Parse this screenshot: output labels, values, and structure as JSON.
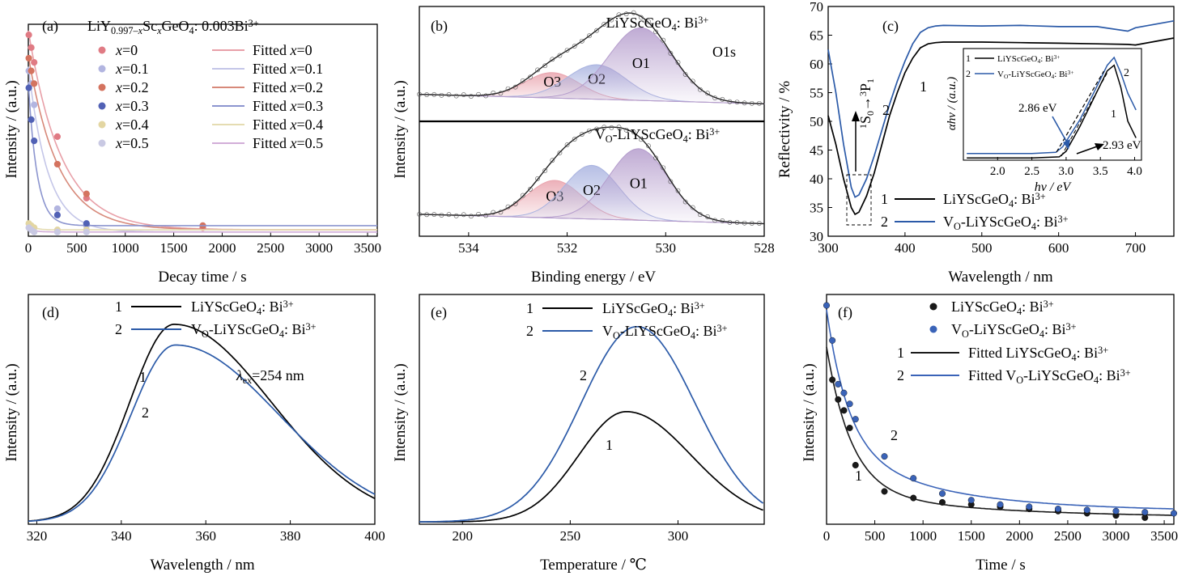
{
  "chart_data": [
    {
      "panel": "(a)",
      "type": "scatter",
      "title": "LiY0.997–xScxGeO4: 0.003Bi3+",
      "title_parts": {
        "base": "LiY",
        "sub1": "0.997–",
        "sub1_italic": "x",
        "mid": "Sc",
        "sub2_italic": "x",
        "rest": "GeO",
        "sub3": "4",
        "tail": ": 0.003Bi",
        "sup": "3+"
      },
      "xlabel": "Decay time / s",
      "ylabel": "Intensity / (a.u.)",
      "xlim": [
        0,
        3600
      ],
      "ylim": [
        0,
        1
      ],
      "xticks": [
        "0",
        "500",
        "1000",
        "1500",
        "2000",
        "2500",
        "3000",
        "3500"
      ],
      "legend_position": "top-right",
      "series": [
        {
          "name": "x=0",
          "fit": "Fitted x=0",
          "color": "#e07b84",
          "fit_color": "#e8a0a8",
          "tau": 340,
          "y0": 0.97,
          "base": 0.03,
          "x": [
            5,
            30,
            60,
            300,
            600,
            1800
          ],
          "y": [
            0.95,
            0.89,
            0.82,
            0.47,
            0.18,
            0.04
          ]
        },
        {
          "name": "x=0.1",
          "fit": "Fitted x=0.1",
          "color": "#b2b5e0",
          "fit_color": "#c4c6e8",
          "tau": 200,
          "y0": 0.8,
          "base": 0.02,
          "x": [
            5,
            30,
            60,
            300,
            600
          ],
          "y": [
            0.78,
            0.72,
            0.62,
            0.13,
            0.05
          ]
        },
        {
          "name": "x=0.2",
          "fit": "Fitted x=0.2",
          "color": "#d4735f",
          "fit_color": "#d7897a",
          "tau": 310,
          "y0": 0.85,
          "base": 0.03,
          "x": [
            5,
            30,
            60,
            300,
            600,
            1800
          ],
          "y": [
            0.84,
            0.78,
            0.72,
            0.34,
            0.2,
            0.05
          ]
        },
        {
          "name": "x=0.3",
          "fit": "Fitted x=0.3",
          "color": "#5161b5",
          "fit_color": "#8c95cf",
          "tau": 90,
          "y0": 0.72,
          "base": 0.05,
          "x": [
            5,
            30,
            60,
            300,
            600
          ],
          "y": [
            0.7,
            0.55,
            0.45,
            0.1,
            0.06
          ]
        },
        {
          "name": "x=0.4",
          "fit": "Fitted x=0.4",
          "color": "#e3d6a2",
          "fit_color": "#e5dcb2",
          "tau": 60,
          "y0": 0.06,
          "base": 0.03,
          "x": [
            5,
            30,
            60,
            300,
            600
          ],
          "y": [
            0.06,
            0.05,
            0.04,
            0.03,
            0.03
          ]
        },
        {
          "name": "x=0.5",
          "fit": "Fitted x=0.5",
          "color": "#c9c9e3",
          "fit_color": "#d2aed8",
          "tau": 60,
          "y0": 0.04,
          "base": 0.02,
          "x": [
            5,
            30,
            60,
            300,
            600
          ],
          "y": [
            0.04,
            0.03,
            0.02,
            0.02,
            0.02
          ]
        }
      ]
    },
    {
      "panel": "(b)",
      "type": "area",
      "xlabel": "Binding energy / eV",
      "ylabel": "Intensity / (a.u.)",
      "xlim": [
        535,
        528
      ],
      "xticks": [
        "534",
        "532",
        "530",
        "528"
      ],
      "annotation": "O1s",
      "subplots": [
        {
          "label": "LiYScGeO4: Bi3+",
          "label_base": "LiYScGeO",
          "label_sub": "4",
          "label_tail": ": Bi",
          "label_sup": "3+",
          "peaks": [
            {
              "name": "O3",
              "center": 532.3,
              "height": 0.28,
              "sigma": 0.55,
              "color": "#e9a3ad"
            },
            {
              "name": "O2",
              "center": 531.4,
              "height": 0.38,
              "sigma": 0.6,
              "color": "#a9b3e0"
            },
            {
              "name": "O1",
              "center": 530.5,
              "height": 0.8,
              "sigma": 0.65,
              "color": "#b49ccc"
            }
          ]
        },
        {
          "label": "VO-LiYScGeO4: Bi3+",
          "label_base": "V",
          "label_vsub": "O",
          "label_mid": "-LiYScGeO",
          "label_sub": "4",
          "label_tail": ": Bi",
          "label_sup": "3+",
          "peaks": [
            {
              "name": "O3",
              "center": 532.25,
              "height": 0.42,
              "sigma": 0.55,
              "color": "#e9a3ad"
            },
            {
              "name": "O2",
              "center": 531.5,
              "height": 0.6,
              "sigma": 0.55,
              "color": "#a9b3e0"
            },
            {
              "name": "O1",
              "center": 530.55,
              "height": 0.8,
              "sigma": 0.6,
              "color": "#b49ccc"
            }
          ]
        }
      ]
    },
    {
      "panel": "(c)",
      "type": "line",
      "xlabel": "Wavelength / nm",
      "ylabel": "Reflectivity / %",
      "xlim": [
        300,
        750
      ],
      "ylim": [
        30,
        70
      ],
      "xticks": [
        "300",
        "400",
        "500",
        "600",
        "700"
      ],
      "yticks": [
        "30",
        "35",
        "40",
        "45",
        "50",
        "55",
        "60",
        "65",
        "70"
      ],
      "annotation": "1S0→3P1",
      "series": [
        {
          "name": "LiYScGeO4: Bi3+",
          "num": "1",
          "color": "#000000",
          "x": [
            300,
            310,
            320,
            330,
            335,
            340,
            350,
            360,
            370,
            380,
            390,
            400,
            410,
            420,
            430,
            440,
            450,
            500,
            550,
            600,
            650,
            690,
            700,
            750
          ],
          "y": [
            51,
            46,
            40,
            35,
            33.8,
            34.2,
            37,
            41,
            46,
            51,
            55,
            58.5,
            61,
            62.8,
            63.5,
            63.7,
            63.8,
            63.8,
            63.7,
            63.6,
            63.5,
            63.4,
            63.3,
            64.5
          ]
        },
        {
          "name": "VO-LiYScGeO4: Bi3+",
          "num": "2",
          "color": "#2b5aa8",
          "x": [
            300,
            310,
            320,
            330,
            335,
            340,
            350,
            360,
            370,
            380,
            390,
            400,
            410,
            420,
            430,
            440,
            450,
            500,
            550,
            600,
            650,
            690,
            700,
            750
          ],
          "y": [
            62.5,
            55,
            46,
            38.5,
            36.8,
            37.2,
            40,
            44,
            48.5,
            53,
            57,
            60.5,
            63.5,
            65.5,
            66.3,
            66.6,
            66.7,
            66.6,
            66.7,
            66.5,
            66.5,
            65.7,
            66.3,
            67.5
          ]
        }
      ],
      "inset": {
        "xlabel": "hv / eV",
        "ylabel": "αhv / (a.u.)",
        "xlim": [
          1.5,
          4.1
        ],
        "xticks": [
          "2.0",
          "2.5",
          "3.0",
          "3.5",
          "4.0"
        ],
        "annotations": [
          "2.86 eV",
          "2.93 eV"
        ],
        "series": [
          {
            "name": "LiYScGeO4: Bi3+",
            "num": "1",
            "color": "#000000",
            "x": [
              1.55,
              2.0,
              2.5,
              2.9,
              3.0,
              3.2,
              3.4,
              3.6,
              3.7,
              3.8,
              3.9,
              4.02
            ],
            "y": [
              0.02,
              0.02,
              0.02,
              0.03,
              0.08,
              0.3,
              0.55,
              0.8,
              0.85,
              0.65,
              0.35,
              0.2
            ]
          },
          {
            "name": "VO-LiYScGeO4: Bi3+",
            "num": "2",
            "color": "#2b5aa8",
            "x": [
              1.55,
              2.0,
              2.5,
              2.85,
              2.95,
              3.2,
              3.4,
              3.6,
              3.7,
              3.8,
              3.9,
              4.02
            ],
            "y": [
              0.06,
              0.06,
              0.06,
              0.07,
              0.12,
              0.36,
              0.6,
              0.85,
              0.92,
              0.78,
              0.6,
              0.45
            ]
          }
        ]
      }
    },
    {
      "panel": "(d)",
      "type": "line",
      "xlabel": "Wavelength / nm",
      "ylabel": "Intensity / (a.u.)",
      "xlim": [
        318,
        400
      ],
      "xticks": [
        "320",
        "340",
        "360",
        "380",
        "400"
      ],
      "annotation": "λex=254 nm",
      "series": [
        {
          "name": "LiYScGeO4: Bi3+",
          "num": "1",
          "color": "#000000",
          "peak": 352.5,
          "height": 0.86,
          "sl": 10.5,
          "sr": 23
        },
        {
          "name": "VO-LiYScGeO4: Bi3+",
          "num": "2",
          "color": "#2b5aa8",
          "peak": 352.8,
          "height": 0.77,
          "sl": 10.5,
          "sr": 24.5
        }
      ]
    },
    {
      "panel": "(e)",
      "type": "line",
      "xlabel": "Temperature / ℃",
      "ylabel": "Intensity / (a.u.)",
      "xlim": [
        180,
        340
      ],
      "xticks": [
        "200",
        "250",
        "300"
      ],
      "series": [
        {
          "name": "LiYScGeO4: Bi3+",
          "num": "1",
          "color": "#000000",
          "peak": 276,
          "height": 0.48,
          "sl": 22,
          "sr": 30
        },
        {
          "name": "VO-LiYScGeO4: Bi3+",
          "num": "2",
          "color": "#2b5aa8",
          "peak": 281,
          "height": 0.85,
          "sl": 26,
          "sr": 27
        }
      ]
    },
    {
      "panel": "(f)",
      "type": "scatter",
      "xlabel": "Time / s",
      "ylabel": "Intensity / (a.u.)",
      "xlim": [
        0,
        3600
      ],
      "xticks": [
        "0",
        "500",
        "1000",
        "1500",
        "2000",
        "2500",
        "3000",
        "3500"
      ],
      "series": [
        {
          "name": "LiYScGeO4: Bi3+",
          "fit_name": "Fitted LiYScGeO4: Bi3+",
          "num": "1",
          "color": "#1a1a1a",
          "x": [
            60,
            120,
            180,
            240,
            300,
            600,
            900,
            1200,
            1500,
            1800,
            2100,
            2400,
            2700,
            3000,
            3300
          ],
          "y": [
            0.66,
            0.57,
            0.52,
            0.44,
            0.27,
            0.15,
            0.12,
            0.1,
            0.09,
            0.08,
            0.07,
            0.06,
            0.05,
            0.04,
            0.03
          ]
        },
        {
          "name": "VO-LiYScGeO4: Bi3+",
          "fit_name": "Fitted VO-LiYScGeO4: Bi3+",
          "num": "2",
          "color": "#3a63b8",
          "x": [
            0,
            60,
            120,
            180,
            240,
            300,
            600,
            900,
            1200,
            1500,
            1800,
            2100,
            2400,
            2700,
            3000,
            3300,
            3600
          ],
          "y": [
            1.0,
            0.84,
            0.64,
            0.6,
            0.55,
            0.48,
            0.31,
            0.21,
            0.14,
            0.11,
            0.09,
            0.08,
            0.07,
            0.065,
            0.06,
            0.055,
            0.05
          ]
        }
      ]
    }
  ]
}
